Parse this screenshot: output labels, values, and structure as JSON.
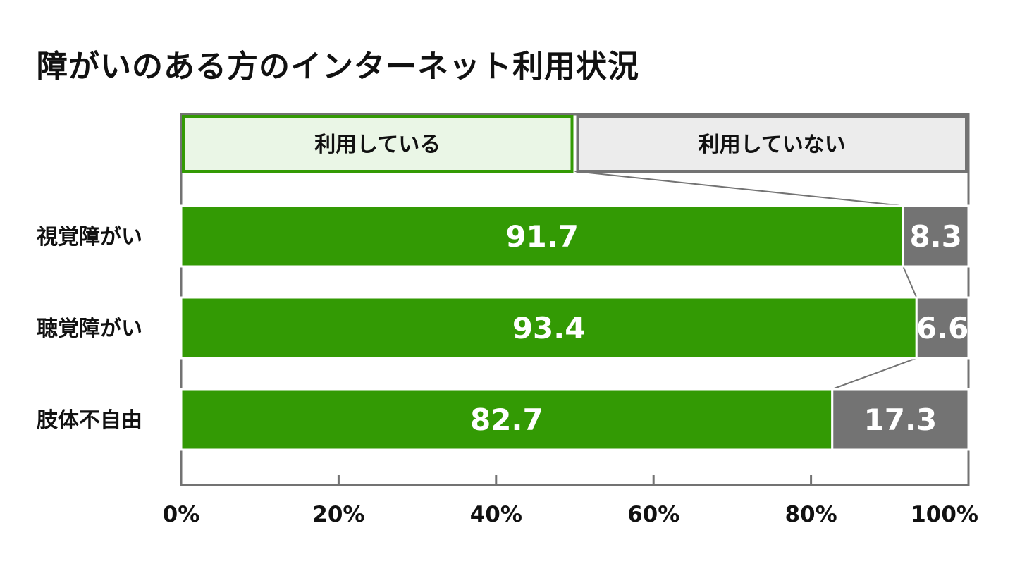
{
  "title": "障がいのある方のインターネット利用状況",
  "colors": {
    "used": "#339a04",
    "not_used": "#737373",
    "used_legend_bg": "#eaf6e6",
    "not_used_legend_bg": "#ececec",
    "frame": "#737373",
    "connector": "#737373"
  },
  "chart_data": {
    "type": "bar",
    "orientation": "horizontal",
    "stacked": true,
    "categories": [
      "視覚障がい",
      "聴覚障がい",
      "肢体不自由"
    ],
    "series": [
      {
        "name": "利用している",
        "values": [
          91.7,
          93.4,
          82.7
        ]
      },
      {
        "name": "利用していない",
        "values": [
          8.3,
          6.6,
          17.3
        ]
      }
    ],
    "xlim": [
      0,
      100
    ],
    "x_ticks": [
      "0%",
      "20%",
      "40%",
      "60%",
      "80%",
      "100%"
    ],
    "legend_position": "top",
    "grid": false
  }
}
